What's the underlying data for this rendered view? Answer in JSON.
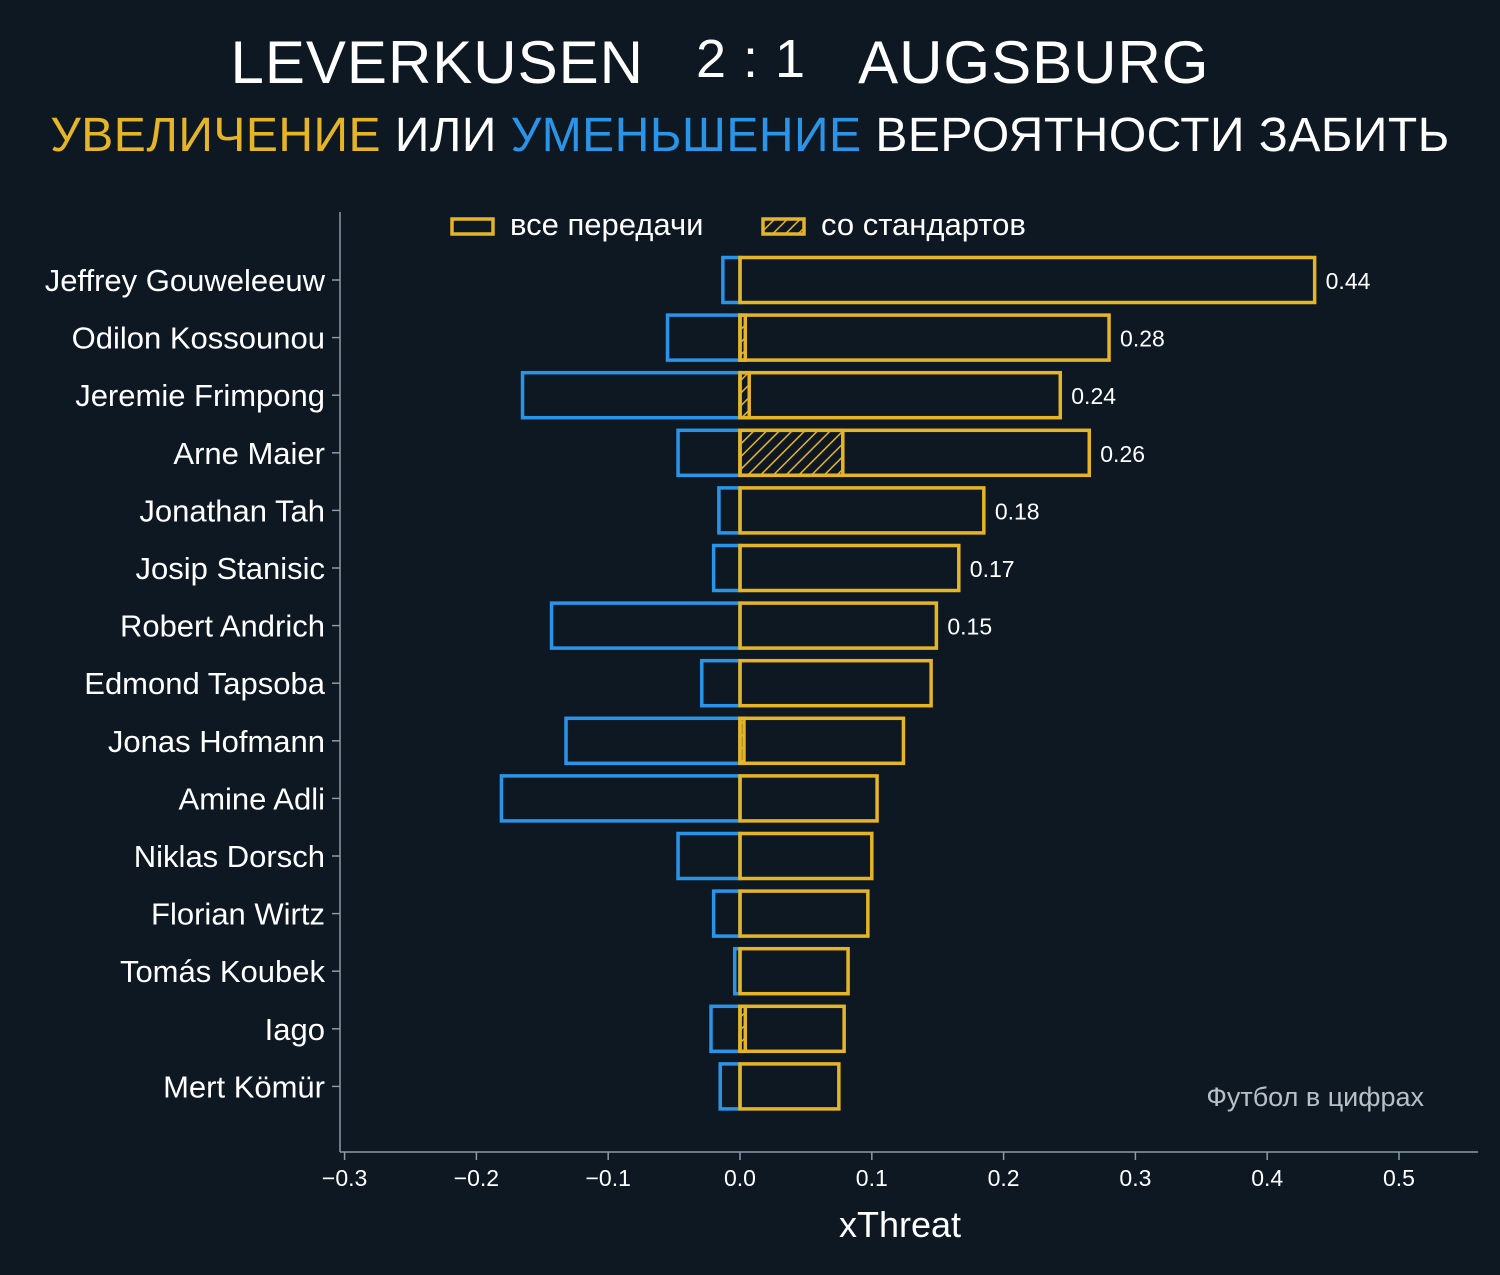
{
  "header": {
    "home_team": "LEVERKUSEN",
    "score": "2 : 1",
    "away_team": "AUGSBURG",
    "subtitle_increase": "УВЕЛИЧЕНИЕ",
    "subtitle_or": "ИЛИ",
    "subtitle_decrease": "УМЕНЬШЕНИЕ",
    "subtitle_rest": "ВЕРОЯТНОСТИ ЗАБИТЬ"
  },
  "colors": {
    "background": "#0e1822",
    "increase": "#e5b526",
    "decrease": "#2a95e8",
    "axis": "#8a9aa6",
    "text": "#ffffff",
    "watermark": "#b8c0c6"
  },
  "chart_data": {
    "type": "bar",
    "orientation": "horizontal",
    "xlabel": "xThreat",
    "ylabel": "",
    "xlim": [
      -0.3,
      0.56
    ],
    "xticks": [
      -0.3,
      -0.2,
      -0.1,
      0.0,
      0.1,
      0.2,
      0.3,
      0.4,
      0.5
    ],
    "xtick_labels": [
      "−0.3",
      "−0.2",
      "−0.1",
      "0.0",
      "0.1",
      "0.2",
      "0.3",
      "0.4",
      "0.5"
    ],
    "legend": {
      "placement": "top",
      "all_passes": "все передачи",
      "set_pieces": "со стандартов"
    },
    "watermark": "Футбол в цифрах",
    "categories": [
      "Jeffrey Gouweleeuw",
      "Odilon Kossounou",
      "Jeremie Frimpong",
      "Arne Maier",
      "Jonathan Tah",
      "Josip Stanisic",
      "Robert Andrich",
      "Edmond Tapsoba",
      "Jonas Hofmann",
      "Amine Adli",
      "Niklas Dorsch",
      "Florian Wirtz",
      "Tomás Koubek",
      "Iago",
      "Mert Kömür"
    ],
    "series": [
      {
        "name": "increase",
        "values": [
          0.436,
          0.28,
          0.243,
          0.265,
          0.185,
          0.166,
          0.149,
          0.145,
          0.124,
          0.104,
          0.1,
          0.097,
          0.082,
          0.079,
          0.075
        ]
      },
      {
        "name": "decrease",
        "values": [
          -0.013,
          -0.055,
          -0.165,
          -0.047,
          -0.016,
          -0.02,
          -0.143,
          -0.029,
          -0.132,
          -0.181,
          -0.047,
          -0.02,
          -0.004,
          -0.022,
          -0.015
        ]
      },
      {
        "name": "set_pieces",
        "values": [
          0.0,
          0.004,
          0.007,
          0.078,
          0.0,
          0.0,
          0.0,
          0.0,
          0.003,
          0.0,
          0.0,
          0.0,
          0.0,
          0.004,
          0.0
        ]
      }
    ],
    "data_labels": [
      "0.44",
      "0.28",
      "0.24",
      "0.26",
      "0.18",
      "0.17",
      "0.15",
      "",
      "",
      "",
      "",
      "",
      "",
      "",
      ""
    ]
  }
}
